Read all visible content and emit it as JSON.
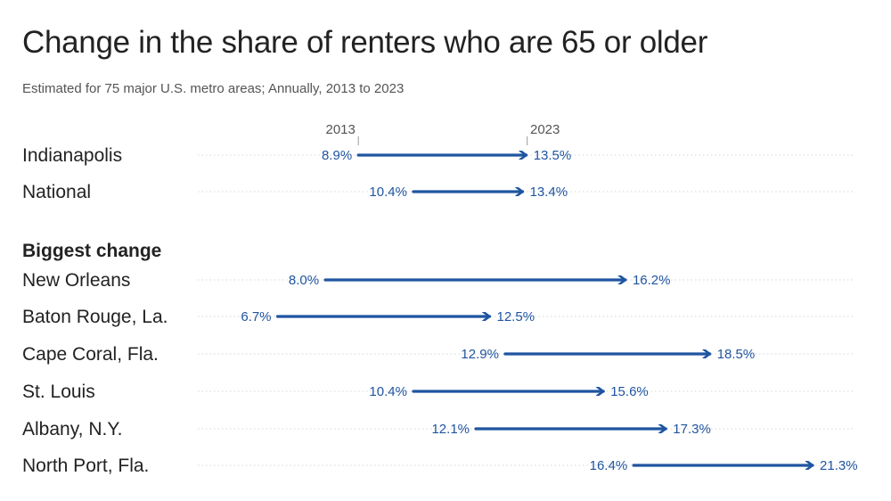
{
  "chart_data": {
    "type": "dumbbell",
    "title": "Change in the share of renters who are 65 or older",
    "subtitle": "Estimated for 75 major U.S. metro areas; Annually, 2013 to 2023",
    "start_label": "2013",
    "end_label": "2023",
    "value_suffix": "%",
    "color": "#1f55a0",
    "section_label": "Biggest change",
    "groups": [
      {
        "rows": [
          {
            "name": "Indianapolis",
            "start": 8.9,
            "end": 13.5,
            "start_text": "8.9%",
            "end_text": "13.5%"
          },
          {
            "name": "National",
            "start": 10.4,
            "end": 13.4,
            "start_text": "10.4%",
            "end_text": "13.4%"
          }
        ]
      },
      {
        "rows": [
          {
            "name": "New Orleans",
            "start": 8.0,
            "end": 16.2,
            "start_text": "8.0%",
            "end_text": "16.2%"
          },
          {
            "name": "Baton Rouge, La.",
            "start": 6.7,
            "end": 12.5,
            "start_text": "6.7%",
            "end_text": "12.5%"
          },
          {
            "name": "Cape Coral, Fla.",
            "start": 12.9,
            "end": 18.5,
            "start_text": "12.9%",
            "end_text": "18.5%"
          },
          {
            "name": "St. Louis",
            "start": 10.4,
            "end": 15.6,
            "start_text": "10.4%",
            "end_text": "15.6%"
          },
          {
            "name": "Albany, N.Y.",
            "start": 12.1,
            "end": 17.3,
            "start_text": "12.1%",
            "end_text": "17.3%"
          },
          {
            "name": "North Port, Fla.",
            "start": 16.4,
            "end": 21.3,
            "start_text": "16.4%",
            "end_text": "21.3%"
          }
        ]
      }
    ]
  }
}
